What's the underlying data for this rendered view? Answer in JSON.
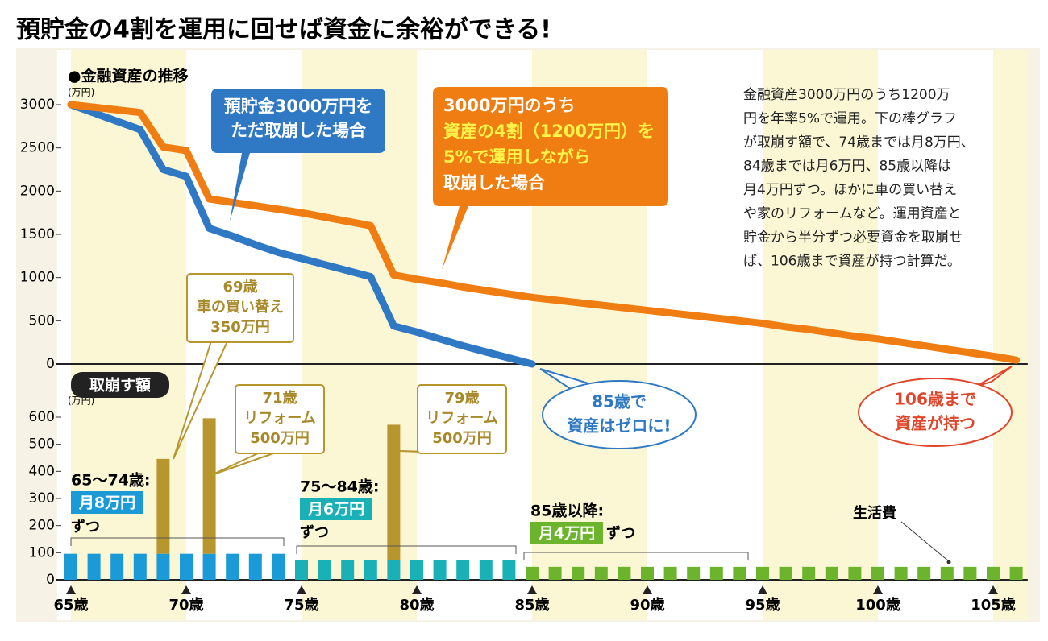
{
  "title": "預貯金の4割を運用に回せば資金に余裕ができる!",
  "chart_data": [
    {
      "type": "line",
      "title": "●金融資産の推移",
      "y_unit": "(万円)",
      "xlim": [
        64.4,
        106.5
      ],
      "ylim": [
        0,
        3000
      ],
      "yticks": [
        0,
        500,
        1000,
        1500,
        2000,
        2500,
        3000
      ],
      "series": [
        {
          "name": [
            "預貯金3000万円を",
            "ただ取崩した場合"
          ],
          "color": "#2f78c4",
          "x": [
            65,
            66,
            67,
            68,
            69,
            70,
            71,
            72,
            73,
            74,
            75,
            76,
            77,
            78,
            79,
            80,
            81,
            82,
            83,
            84,
            85
          ],
          "values": [
            3000,
            2904,
            2808,
            2712,
            2250,
            2170,
            1570,
            1480,
            1380,
            1290,
            1220,
            1150,
            1080,
            1010,
            440,
            370,
            290,
            210,
            140,
            70,
            0
          ]
        },
        {
          "name": [
            "3000万円のうち",
            "資産の4割（1200万円）を",
            "5%で運用しながら",
            "取崩した場合"
          ],
          "color": "#ef7d12",
          "x": [
            65,
            66,
            67,
            68,
            69,
            70,
            71,
            72,
            73,
            74,
            75,
            76,
            77,
            78,
            79,
            80,
            81,
            82,
            83,
            84,
            85,
            86,
            87,
            88,
            89,
            90,
            91,
            92,
            93,
            94,
            95,
            96,
            97,
            98,
            99,
            100,
            101,
            102,
            103,
            104,
            105,
            106
          ],
          "values": [
            3000,
            2970,
            2940,
            2910,
            2510,
            2470,
            1910,
            1870,
            1830,
            1790,
            1750,
            1700,
            1650,
            1600,
            1030,
            980,
            940,
            890,
            850,
            810,
            770,
            740,
            710,
            680,
            650,
            620,
            590,
            560,
            530,
            500,
            470,
            430,
            400,
            360,
            320,
            290,
            250,
            210,
            170,
            130,
            90,
            45
          ]
        }
      ],
      "note": [
        "金融資産3000万円のうち1200万",
        "円を年率5%で運用。下の棒グラフ",
        "が取崩す額で、74歳までは月8万円、",
        "84歳までは月6万円、85歳以降は",
        "月4万円ずつ。ほかに車の買い替え",
        "や家のリフォームなど。運用資産と",
        "貯金から半分ずつ必要資金を取崩せ",
        "ば、106歳まで資産が持つ計算だ。"
      ],
      "callouts": [
        [
          "85歳で",
          "資産はゼロに!"
        ],
        [
          "106歳まで",
          "資産が持つ"
        ]
      ]
    },
    {
      "type": "bar",
      "title": "取崩す額",
      "y_unit": "(万円)",
      "xlim": [
        64.4,
        106.5
      ],
      "ylim": [
        0,
        600
      ],
      "yticks": [
        0,
        100,
        200,
        300,
        400,
        500,
        600
      ],
      "xticks": [
        {
          "value": 65,
          "label": "65歳"
        },
        {
          "value": 70,
          "label": "70歳"
        },
        {
          "value": 75,
          "label": "75歳"
        },
        {
          "value": 80,
          "label": "80歳"
        },
        {
          "value": 85,
          "label": "85歳"
        },
        {
          "value": 90,
          "label": "90歳"
        },
        {
          "value": 95,
          "label": "95歳"
        },
        {
          "value": 100,
          "label": "100歳"
        },
        {
          "value": 105,
          "label": "105歳"
        }
      ],
      "series": [
        {
          "color": "#1a9ad6",
          "x": [
            65,
            66,
            67,
            68,
            69,
            70,
            71,
            72,
            73,
            74
          ],
          "values": [
            96,
            96,
            96,
            96,
            96,
            96,
            96,
            96,
            96,
            96
          ]
        },
        {
          "color": "#19b0b6",
          "x": [
            75,
            76,
            77,
            78,
            79,
            80,
            81,
            82,
            83,
            84
          ],
          "values": [
            72,
            72,
            72,
            72,
            72,
            72,
            72,
            72,
            72,
            72
          ]
        },
        {
          "color": "#6cb42c",
          "x": [
            85,
            86,
            87,
            88,
            89,
            90,
            91,
            92,
            93,
            94,
            95,
            96,
            97,
            98,
            99,
            100,
            101,
            102,
            103,
            104,
            105,
            106
          ],
          "values": [
            48,
            48,
            48,
            48,
            48,
            48,
            48,
            48,
            48,
            48,
            48,
            48,
            48,
            48,
            48,
            48,
            48,
            48,
            48,
            48,
            48,
            48
          ]
        },
        {
          "color": "#b8962e",
          "x": [
            69,
            71,
            79
          ],
          "values": [
            350,
            500,
            500
          ],
          "stacked": true
        }
      ],
      "periods": [
        {
          "label": "65〜74歳:",
          "badge": "月8万円",
          "suffix": "ずつ",
          "color": "#1a9ad6"
        },
        {
          "label": "75〜84歳:",
          "badge": "月6万円",
          "suffix": "ずつ",
          "color": "#19b0b6"
        },
        {
          "label": "85歳以降:",
          "badge": "月4万円",
          "suffix": "ずつ",
          "color": "#6cb42c"
        }
      ],
      "events": [
        [
          "69歳",
          "車の買い替え",
          "350万円"
        ],
        [
          "71歳",
          "リフォーム",
          "500万円"
        ],
        [
          "79歳",
          "リフォーム",
          "500万円"
        ]
      ],
      "marker_label": "生活費"
    }
  ]
}
